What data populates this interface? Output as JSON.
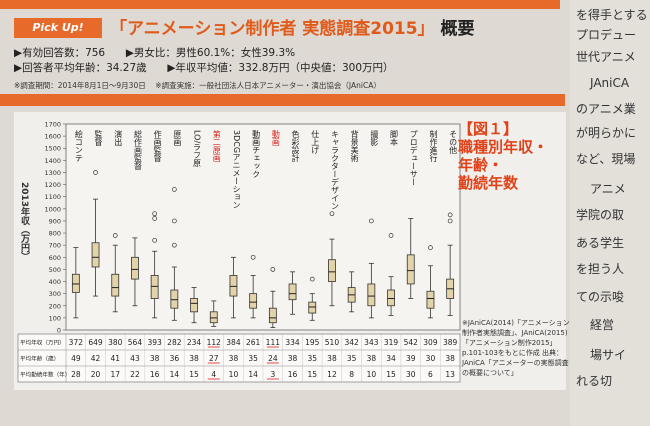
{
  "header": {
    "pickup_label": "Pick Up!",
    "title": "「アニメーション制作者 実態調査2015」",
    "title_suffix": "概要"
  },
  "stats": {
    "valid_responses": "▶有効回答数：756",
    "gender_ratio": "▶男女比：男性60.1%：女性39.3%",
    "avg_age": "▶回答者平均年齢：34.27歳",
    "avg_income": "▶年収平均値：332.8万円（中央値：300万円）",
    "survey_period": "※調査期間：2014年8月1日〜9月30日",
    "survey_org": "※調査実施：一般社団法人日本アニメーター・演出協会（JAniCA）"
  },
  "sidebar_lines": [
    "を得手とする",
    "プロデュー",
    "世代アニメ",
    "JAniCA",
    "のアニメ業",
    "が明らかに",
    "など、現場",
    "アニメ",
    "学院の取",
    "ある学生",
    "を担う人",
    "ての示唆",
    "経営",
    "場サイ",
    "れる切"
  ],
  "figure": {
    "title_lines": [
      "【図１】",
      "職種別年収・",
      "年齢・",
      "勤続年数"
    ],
    "footnote": "※JAniCA(2014)「アニメーション制作者実態調査」、JAniCA(2015)「アニメーション制作2015」p.101-103をもとに作成 出典：JAniCA「アニメーターの実態調査の概要について」"
  },
  "chart_data": {
    "type": "boxplot",
    "ylabel": "2013年収（万円）",
    "ylim": [
      0,
      1700
    ],
    "yticks": [
      0,
      100,
      200,
      300,
      400,
      500,
      600,
      700,
      800,
      900,
      1000,
      1100,
      1200,
      1300,
      1400,
      1500,
      1600,
      1700
    ],
    "categories": [
      "絵コンテ",
      "監督",
      "演出",
      "総作画監督",
      "作画監督",
      "原画",
      "LO/ラフ原",
      "第二原画",
      "3DCGアニメーション",
      "動画チェック",
      "動画",
      "色彩設計",
      "仕上げ",
      "キャラクターデザイン",
      "背景美術",
      "撮影",
      "脚本",
      "プロデューサー",
      "制作進行",
      "その他"
    ],
    "red_categories": [
      "第二原画",
      "動画"
    ],
    "boxes": [
      {
        "min": 100,
        "q1": 310,
        "median": 380,
        "q3": 460,
        "max": 680,
        "outliers": []
      },
      {
        "min": 280,
        "q1": 520,
        "median": 600,
        "q3": 720,
        "max": 1080,
        "outliers": [
          1300
        ]
      },
      {
        "min": 150,
        "q1": 280,
        "median": 350,
        "q3": 460,
        "max": 700,
        "outliers": [
          780
        ]
      },
      {
        "min": 200,
        "q1": 420,
        "median": 500,
        "q3": 600,
        "max": 760,
        "outliers": []
      },
      {
        "min": 100,
        "q1": 260,
        "median": 360,
        "q3": 450,
        "max": 650,
        "outliers": [
          920,
          960,
          740
        ]
      },
      {
        "min": 80,
        "q1": 180,
        "median": 250,
        "q3": 330,
        "max": 520,
        "outliers": [
          700,
          900,
          1160
        ]
      },
      {
        "min": 60,
        "q1": 150,
        "median": 220,
        "q3": 260,
        "max": 350,
        "outliers": []
      },
      {
        "min": 30,
        "q1": 60,
        "median": 100,
        "q3": 150,
        "max": 240,
        "outliers": []
      },
      {
        "min": 100,
        "q1": 280,
        "median": 360,
        "q3": 450,
        "max": 600,
        "outliers": []
      },
      {
        "min": 100,
        "q1": 180,
        "median": 230,
        "q3": 300,
        "max": 450,
        "outliers": [
          600
        ]
      },
      {
        "min": 20,
        "q1": 60,
        "median": 100,
        "q3": 180,
        "max": 320,
        "outliers": [
          500
        ]
      },
      {
        "min": 130,
        "q1": 250,
        "median": 300,
        "q3": 380,
        "max": 480,
        "outliers": []
      },
      {
        "min": 80,
        "q1": 140,
        "median": 190,
        "q3": 230,
        "max": 300,
        "outliers": [
          420
        ]
      },
      {
        "min": 200,
        "q1": 400,
        "median": 480,
        "q3": 580,
        "max": 750,
        "outliers": [
          960
        ]
      },
      {
        "min": 150,
        "q1": 230,
        "median": 290,
        "q3": 350,
        "max": 480,
        "outliers": []
      },
      {
        "min": 100,
        "q1": 200,
        "median": 280,
        "q3": 380,
        "max": 550,
        "outliers": [
          900
        ]
      },
      {
        "min": 120,
        "q1": 200,
        "median": 260,
        "q3": 330,
        "max": 440,
        "outliers": [
          780
        ]
      },
      {
        "min": 260,
        "q1": 380,
        "median": 490,
        "q3": 620,
        "max": 920,
        "outliers": []
      },
      {
        "min": 100,
        "q1": 180,
        "median": 260,
        "q3": 320,
        "max": 530,
        "outliers": [
          680
        ]
      },
      {
        "min": 120,
        "q1": 260,
        "median": 340,
        "q3": 420,
        "max": 700,
        "outliers": [
          900,
          950
        ]
      }
    ],
    "table": {
      "row_labels": [
        "平均年収（万円）",
        "平均年齢（歳）",
        "平均勤続年数（年）"
      ],
      "income": [
        372,
        649,
        380,
        564,
        393,
        282,
        234,
        112,
        384,
        261,
        111,
        334,
        195,
        510,
        342,
        343,
        319,
        542,
        309,
        389
      ],
      "age": [
        49,
        42,
        41,
        43,
        38,
        36,
        38,
        27,
        38,
        35,
        24,
        38,
        35,
        38,
        35,
        38,
        34,
        39,
        30,
        38
      ],
      "tenure": [
        28,
        20,
        17,
        22,
        16,
        14,
        15,
        4,
        10,
        14,
        3,
        16,
        15,
        12,
        8,
        10,
        15,
        30,
        6,
        13
      ],
      "red_columns": [
        7,
        10
      ]
    }
  }
}
